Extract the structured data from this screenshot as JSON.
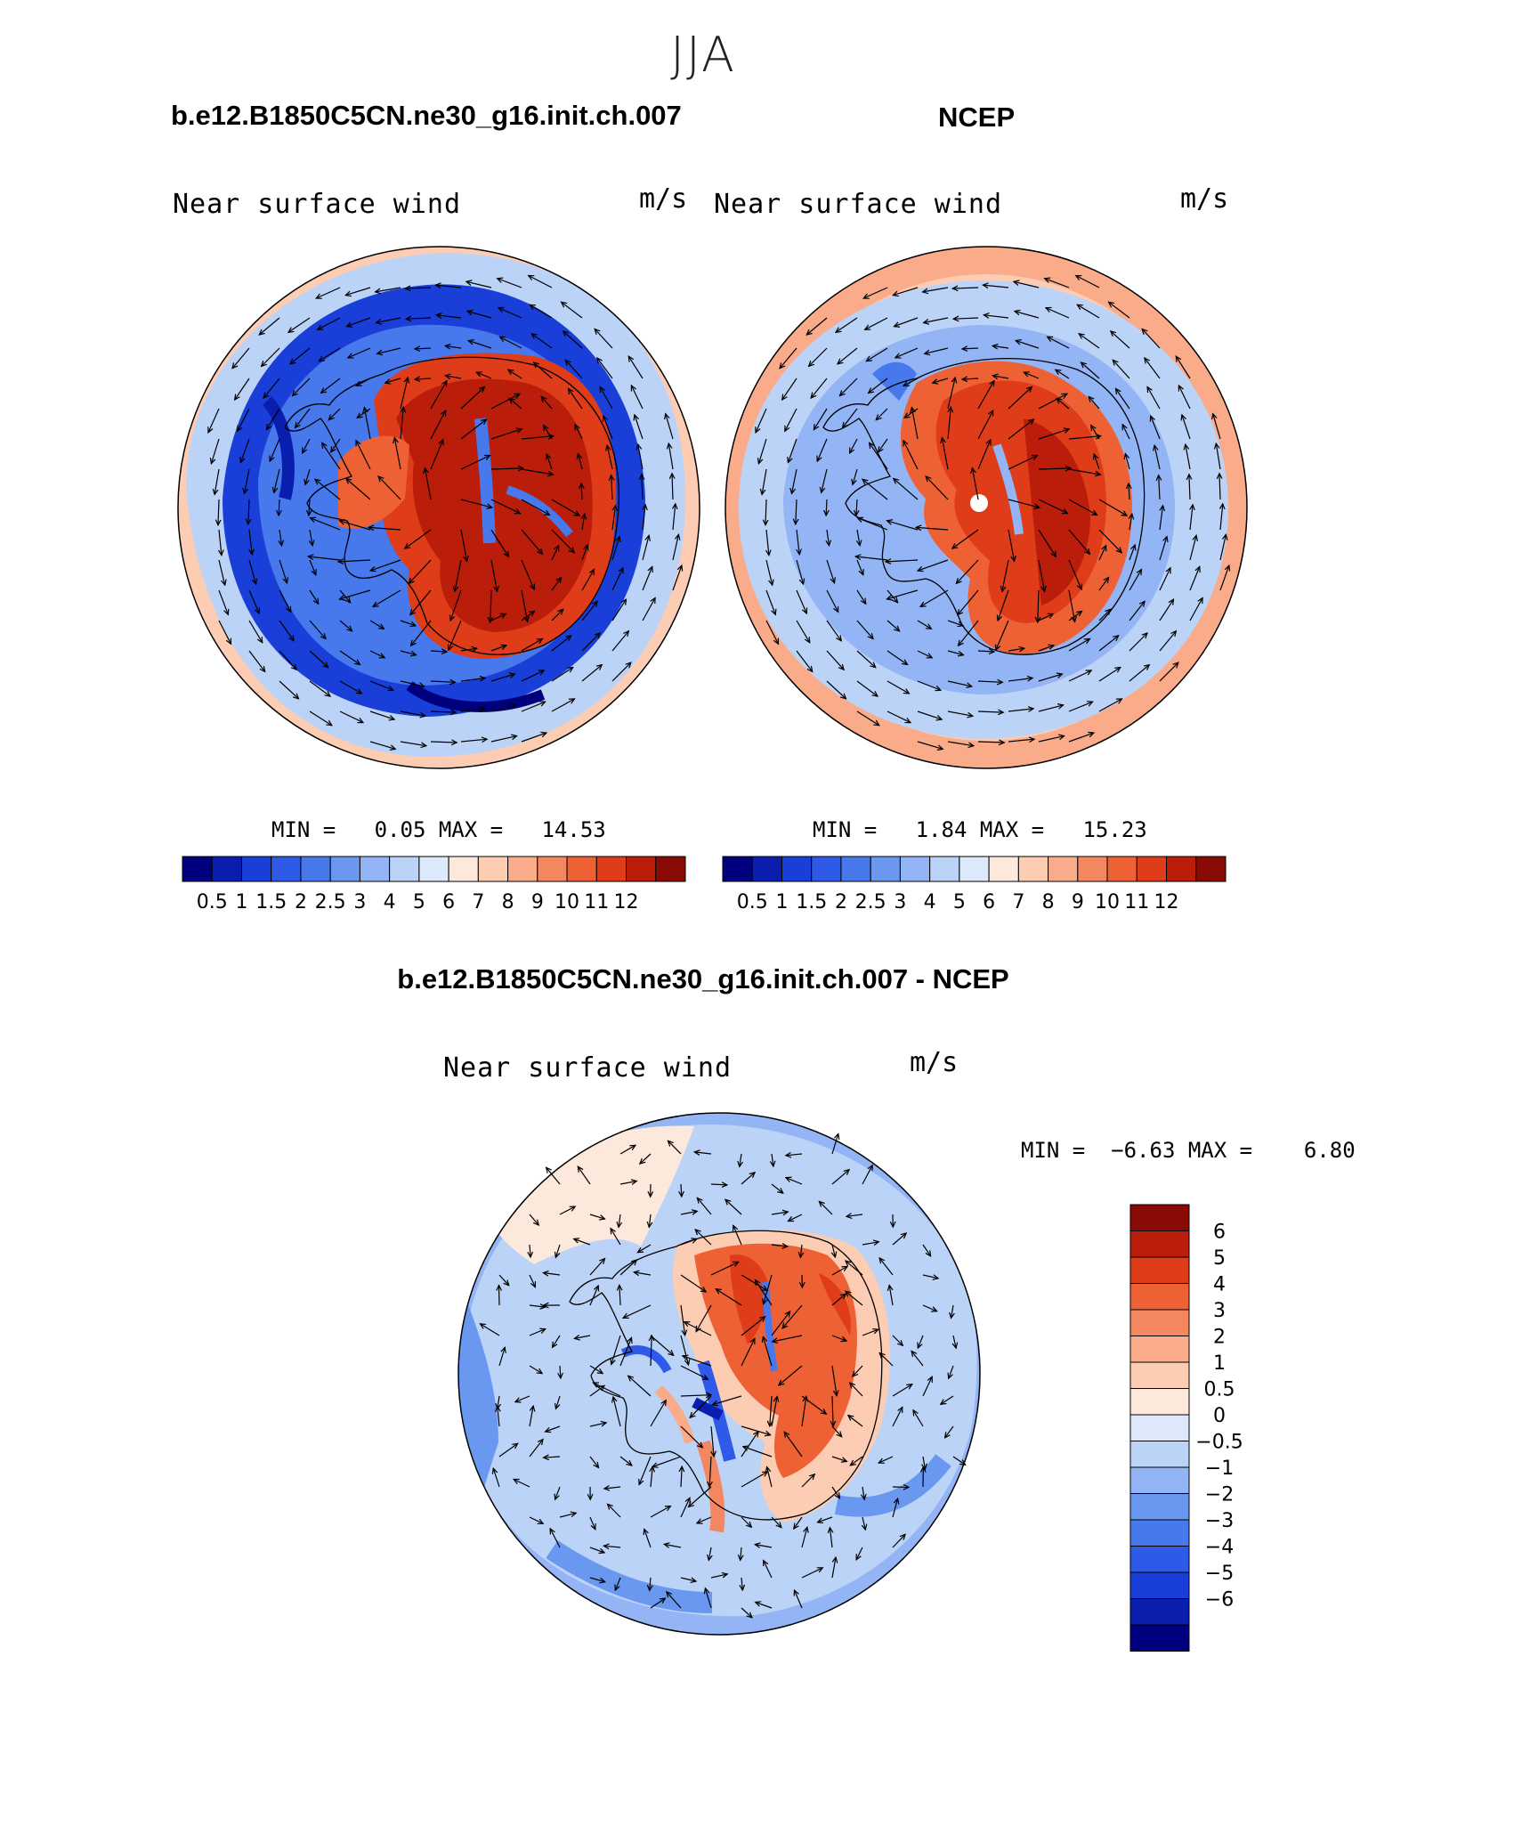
{
  "season": "JJA",
  "panels": [
    {
      "id": "model",
      "title": "b.e12.B1850C5CN.ne30_g16.init.ch.007",
      "variable": "Near surface wind",
      "units": "m/s",
      "min_label": "MIN =",
      "min_value": "0.05",
      "max_label": "MAX =",
      "max_value": "14.53"
    },
    {
      "id": "ncep",
      "title": "NCEP",
      "variable": "Near surface wind",
      "units": "m/s",
      "min_label": "MIN =",
      "min_value": "1.84",
      "max_label": "MAX =",
      "max_value": "15.23"
    },
    {
      "id": "diff",
      "title": "b.e12.B1850C5CN.ne30_g16.init.ch.007 - NCEP",
      "variable": "Near surface wind",
      "units": "m/s",
      "min_label": "MIN =",
      "min_value": "−6.63",
      "max_label": "MAX =",
      "max_value": "6.80"
    }
  ],
  "colorbar_abs": {
    "colors": [
      "#00007f",
      "#0a1eae",
      "#1a3fd8",
      "#2f5ae8",
      "#4879ec",
      "#6a97f0",
      "#93b5f5",
      "#bcd3f8",
      "#dde9fb",
      "#fde9dc",
      "#fcccb3",
      "#f9ab8a",
      "#f4875f",
      "#ee6135",
      "#df3d1a",
      "#bb1d0b",
      "#8a0b05"
    ],
    "tick_labels": [
      "0.5",
      "1",
      "1.5",
      "2",
      "2.5",
      "3",
      "4",
      "5",
      "6",
      "7",
      "8",
      "9",
      "10",
      "11",
      "12"
    ]
  },
  "colorbar_diff": {
    "colors_top_to_bottom": [
      "#8a0b05",
      "#bb1d0b",
      "#df3d1a",
      "#ee6135",
      "#f4875f",
      "#f9ab8a",
      "#fcccb3",
      "#fde9dc",
      "#dde9fb",
      "#bcd3f8",
      "#93b5f5",
      "#6a97f0",
      "#4879ec",
      "#2f5ae8",
      "#1a3fd8",
      "#0a1eae",
      "#00007f"
    ],
    "tick_labels_top_to_bottom": [
      "6",
      "5",
      "4",
      "3",
      "2",
      "1",
      "0.5",
      "0",
      "−0.5",
      "−1",
      "−2",
      "−3",
      "−4",
      "−5",
      "−6"
    ]
  }
}
